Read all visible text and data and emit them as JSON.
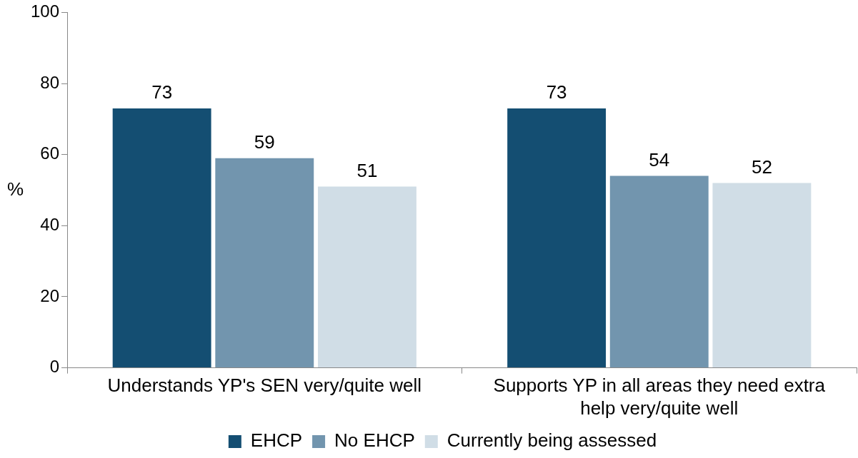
{
  "chart_data": {
    "type": "bar",
    "ylabel": "%",
    "categories": [
      "Understands YP's SEN very/quite well",
      "Supports YP in all areas they need extra help very/quite well"
    ],
    "series": [
      {
        "name": "EHCP",
        "color": "#144e72",
        "values": [
          73,
          73
        ]
      },
      {
        "name": "No EHCP",
        "color": "#7295ae",
        "values": [
          59,
          54
        ]
      },
      {
        "name": "Currently being assessed",
        "color": "#d0dde6",
        "values": [
          51,
          52
        ]
      }
    ],
    "ylim": [
      0,
      100
    ],
    "yticks": [
      0,
      20,
      40,
      60,
      80,
      100
    ],
    "data_labels": true,
    "legend": "bottom"
  }
}
